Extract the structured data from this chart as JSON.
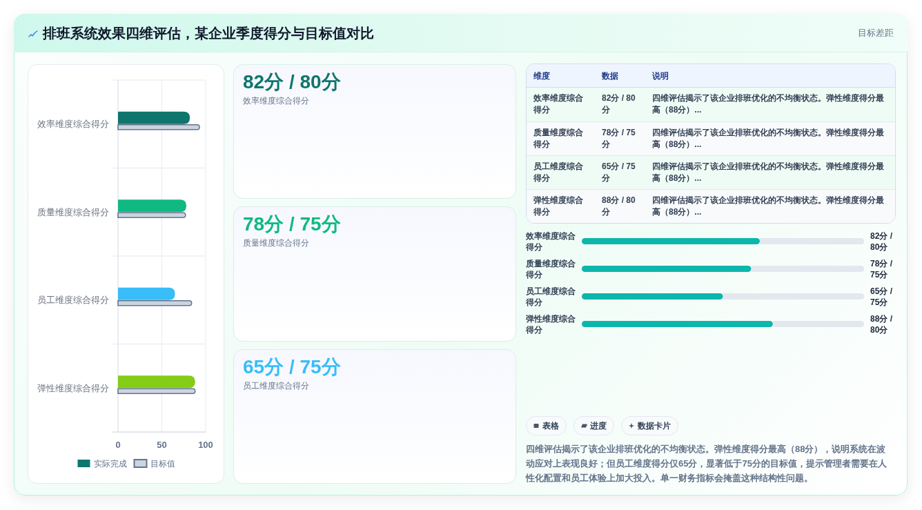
{
  "chart_data": [
    {
      "type": "other",
      "title": "排班系统效果四维评估，某企业季度得分与目标值对比",
      "annotations": [
        "目标差距"
      ]
    },
    {
      "type": "bar",
      "orientation": "horizontal",
      "categories": [
        "效率维度综合得分",
        "质量维度综合得分",
        "员工维度综合得分",
        "弹性维度综合得分"
      ],
      "series": [
        {
          "name": "实际完成",
          "color": "#0f766e",
          "colors": [
            "#0f766e",
            "#10b981",
            "#38bdf8",
            "#84cc16"
          ],
          "values": [
            82,
            78,
            65,
            88
          ]
        },
        {
          "name": "目标值",
          "color": "#cbd5e1",
          "values": [
            93,
            77,
            84,
            88
          ]
        }
      ],
      "xlim": [
        0,
        100
      ],
      "xticks": [
        0,
        50,
        100
      ],
      "grid": true,
      "legend": "bottom"
    },
    {
      "type": "other",
      "title": "82分 / 80分",
      "subtitle": "效率维度综合得分",
      "colors": [
        "#0f766e"
      ]
    },
    {
      "type": "other",
      "title": "78分 / 75分",
      "subtitle": "质量维度综合得分",
      "colors": [
        "#10b981"
      ]
    },
    {
      "type": "other",
      "title": "65分 / 75分",
      "subtitle": "员工维度综合得分",
      "colors": [
        "#38bdf8"
      ]
    },
    {
      "type": "other",
      "annotations": [
        "维度",
        "数据",
        "说明",
        "效率维度综合得分",
        "82分 / 80分",
        "四维评估揭示了该企业排班优化的不均衡状态。弹性维度得分最高（88分）...",
        "质量维度综合得分",
        "78分 / 75分",
        "四维评估揭示了该企业排班优化的不均衡状态。弹性维度得分最高（88分）...",
        "员工维度综合得分",
        "65分 / 75分",
        "四维评估揭示了该企业排班优化的不均衡状态。弹性维度得分最高（88分）...",
        "弹性维度综合得分",
        "88分 / 80分",
        "四维评估揭示了该企业排班优化的不均衡状态。弹性维度得分最高（88分）..."
      ]
    },
    {
      "type": "bar",
      "orientation": "horizontal",
      "categories": [
        "效率维度综合得分",
        "质量维度综合得分",
        "员工维度综合得分",
        "弹性维度综合得分"
      ],
      "values": [
        82,
        78,
        65,
        88
      ],
      "value_labels": [
        "82分 / 80分",
        "78分 / 75分",
        "65分 / 75分",
        "88分 / 80分"
      ],
      "color": "#0db6ab",
      "xlim": [
        0,
        130
      ],
      "tick_labels": "y"
    },
    {
      "type": "other",
      "annotations": [
        "表格",
        "进度",
        "数据卡片",
        "四维评估揭示了该企业排班优化的不均衡状态。弹性维度得分最高（88分），说明系统在波动应对上表现良好；但员工维度得分仅65分，显著低于75分的目标值，提示管理者需要在人性化配置和员工体验上加大投入。单一财务指标会掩盖这种结构性问题。"
      ]
    }
  ]
}
